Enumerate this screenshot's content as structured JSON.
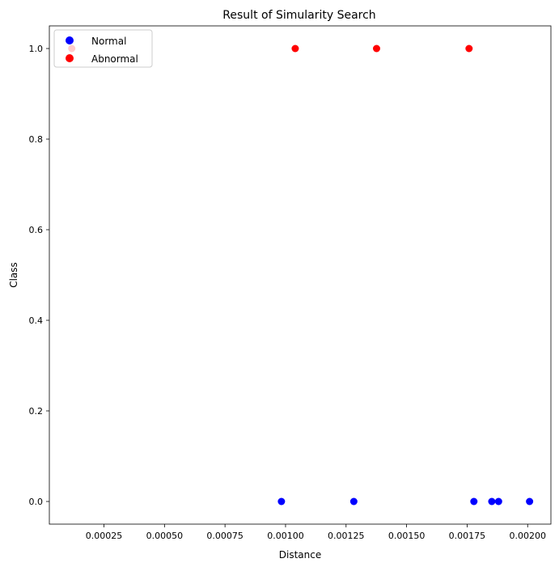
{
  "chart_data": {
    "type": "scatter",
    "title": "Result of Simularity Search",
    "xlabel": "Distance",
    "ylabel": "Class",
    "xlim": [
      2.44e-05,
      0.0020961
    ],
    "ylim": [
      -0.05,
      1.05
    ],
    "xticks": [
      0.00025,
      0.0005,
      0.00075,
      0.001,
      0.00125,
      0.0015,
      0.00175,
      0.002
    ],
    "xtick_labels": [
      "0.00025",
      "0.00050",
      "0.00075",
      "0.00100",
      "0.00125",
      "0.00150",
      "0.00175",
      "0.00200"
    ],
    "yticks": [
      0,
      0.2,
      0.4,
      0.6,
      0.8,
      1.0
    ],
    "ytick_labels": [
      "0.0",
      "0.2",
      "0.4",
      "0.6",
      "0.8",
      "1.0"
    ],
    "grid": false,
    "legend_position": "top-left",
    "series": [
      {
        "name": "Normal",
        "color": "#0000ff",
        "points": [
          {
            "x": 0.000983,
            "y": 0
          },
          {
            "x": 0.001282,
            "y": 0
          },
          {
            "x": 0.001778,
            "y": 0
          },
          {
            "x": 0.001852,
            "y": 0
          },
          {
            "x": 0.00188,
            "y": 0
          },
          {
            "x": 0.002008,
            "y": 0
          }
        ]
      },
      {
        "name": "Abnormal",
        "color": "#ff0000",
        "points": [
          {
            "x": 0.000117,
            "y": 1
          },
          {
            "x": 0.00104,
            "y": 1
          },
          {
            "x": 0.001376,
            "y": 1
          },
          {
            "x": 0.001758,
            "y": 1
          }
        ]
      }
    ]
  }
}
